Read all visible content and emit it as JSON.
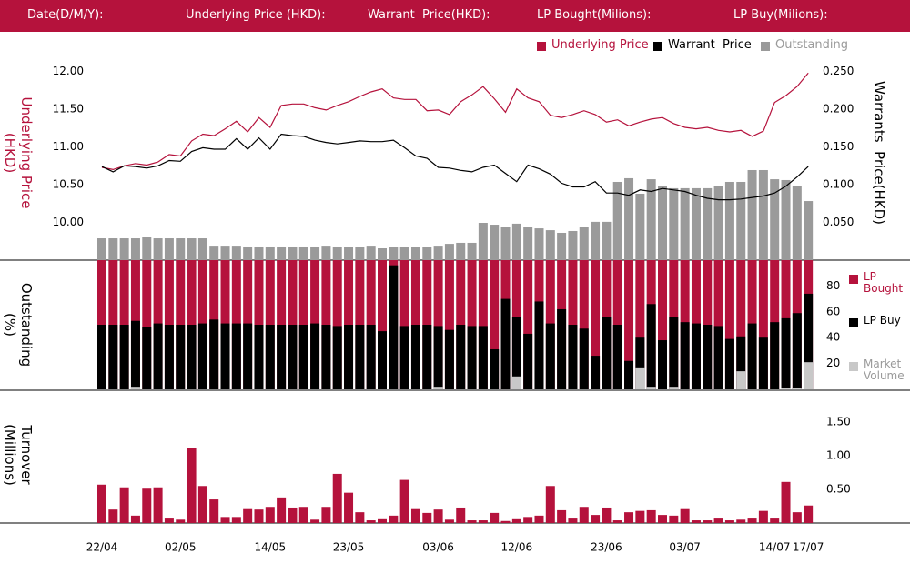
{
  "header": {
    "labels": [
      "Date(D/M/Y):",
      "Underlying Price (HKD):",
      "Warrant  Price(HKD):",
      "LP Bought(Milions):",
      "LP Buy(Milions):"
    ]
  },
  "chart_data": [
    {
      "type": "line",
      "ylabel": "Underlying Price (HKD)",
      "y2label": "Warrants  Price(HKD)",
      "ylim": [
        9.5,
        12.2
      ],
      "yticks": [
        {
          "value": 12,
          "label": "12.00"
        },
        {
          "value": 11.5,
          "label": "11.50"
        },
        {
          "value": 11,
          "label": "11.00"
        },
        {
          "value": 10.5,
          "label": "10.50"
        },
        {
          "value": 10,
          "label": "10.00"
        }
      ],
      "y2lim": [
        0,
        0.27
      ],
      "y2ticks": [
        {
          "value": 0.25,
          "label": "0.250"
        },
        {
          "value": 0.2,
          "label": "0.200"
        },
        {
          "value": 0.15,
          "label": "0.150"
        },
        {
          "value": 0.1,
          "label": "0.100"
        },
        {
          "value": 0.05,
          "label": "0.050"
        }
      ],
      "y3lim": [
        0,
        100
      ],
      "series": [
        {
          "name": "Underlying Price",
          "color": "#b5123c",
          "axis": "y",
          "values": [
            10.73,
            10.7,
            10.75,
            10.78,
            10.76,
            10.8,
            10.9,
            10.88,
            11.08,
            11.17,
            11.15,
            11.24,
            11.34,
            11.2,
            11.39,
            11.26,
            11.55,
            11.57,
            11.57,
            11.52,
            11.49,
            11.55,
            11.6,
            11.67,
            11.73,
            11.77,
            11.65,
            11.63,
            11.63,
            11.48,
            11.49,
            11.43,
            11.6,
            11.69,
            11.8,
            11.64,
            11.46,
            11.77,
            11.65,
            11.6,
            11.42,
            11.39,
            11.43,
            11.48,
            11.43,
            11.33,
            11.36,
            11.28,
            11.33,
            11.37,
            11.39,
            11.31,
            11.26,
            11.24,
            11.26,
            11.22,
            11.2,
            11.22,
            11.14,
            11.21,
            11.59,
            11.68,
            11.8,
            11.98
          ]
        },
        {
          "name": "Warrant  Price",
          "color": "#000000",
          "axis": "y2",
          "values": [
            0.124,
            0.117,
            0.125,
            0.124,
            0.122,
            0.125,
            0.132,
            0.131,
            0.144,
            0.149,
            0.147,
            0.147,
            0.161,
            0.147,
            0.162,
            0.147,
            0.167,
            0.165,
            0.164,
            0.159,
            0.156,
            0.154,
            0.156,
            0.158,
            0.157,
            0.157,
            0.159,
            0.149,
            0.138,
            0.135,
            0.123,
            0.122,
            0.119,
            0.117,
            0.123,
            0.126,
            0.115,
            0.104,
            0.126,
            0.121,
            0.114,
            0.102,
            0.097,
            0.097,
            0.104,
            0.089,
            0.089,
            0.086,
            0.093,
            0.091,
            0.095,
            0.093,
            0.091,
            0.086,
            0.082,
            0.08,
            0.08,
            0.081,
            0.083,
            0.085,
            0.089,
            0.098,
            0.11,
            0.124
          ]
        },
        {
          "name": "Outstanding",
          "color": "#9a9a9a",
          "axis": "y3",
          "type": "bar",
          "values": [
            10.7,
            10.7,
            10.7,
            10.7,
            11.6,
            10.7,
            10.7,
            10.7,
            10.7,
            10.7,
            7.1,
            7.1,
            7.1,
            6.7,
            6.7,
            6.7,
            6.7,
            6.7,
            6.7,
            6.7,
            7.1,
            6.7,
            6.3,
            6.3,
            7.1,
            5.8,
            6.3,
            6.3,
            6.3,
            6.3,
            7.1,
            8.0,
            8.5,
            8.5,
            18.3,
            17.4,
            16.5,
            17.9,
            16.5,
            15.6,
            14.7,
            13.4,
            14.3,
            16.5,
            18.8,
            18.8,
            38.4,
            40.2,
            32.6,
            39.7,
            36.6,
            35.3,
            35.3,
            35.3,
            35.3,
            36.6,
            38.4,
            38.4,
            44.2,
            44.2,
            39.7,
            39.3,
            36.6,
            29.0
          ]
        }
      ]
    },
    {
      "type": "bar",
      "ylabel": "Outstanding (%)",
      "ylim": [
        0,
        100
      ],
      "yticks": [
        80,
        60,
        40,
        20
      ],
      "series": [
        {
          "name": "LP Bought",
          "color": "#b5123c",
          "values": [
            100,
            100,
            100,
            100,
            100,
            100,
            100,
            100,
            100,
            100,
            100,
            100,
            100,
            100,
            100,
            100,
            100,
            100,
            100,
            100,
            100,
            100,
            100,
            100,
            100,
            100,
            100,
            100,
            100,
            100,
            100,
            100,
            100,
            100,
            100,
            100,
            100,
            100,
            100,
            100,
            100,
            100,
            100,
            100,
            100,
            100,
            100,
            100,
            100,
            100,
            100,
            100,
            100,
            100,
            100,
            100,
            100,
            100,
            100,
            100,
            100,
            100,
            100,
            100
          ]
        },
        {
          "name": "LP Buy",
          "color": "#000000",
          "values": [
            50,
            50,
            50,
            53,
            48,
            51,
            50,
            50,
            50,
            51,
            54,
            51,
            51,
            51,
            50,
            50,
            50,
            50,
            50,
            51,
            50,
            49,
            50,
            50,
            50,
            45,
            96,
            49,
            50,
            50,
            49,
            46,
            50,
            49,
            49,
            31,
            70,
            56,
            43,
            68,
            51,
            62,
            50,
            47,
            26,
            56,
            50,
            22,
            40,
            66,
            38,
            56,
            52,
            51,
            50,
            49,
            39,
            41,
            51,
            40,
            52,
            55,
            59,
            74
          ]
        },
        {
          "name": "Market Volume",
          "color": "#c8c8c8",
          "values": [
            0,
            0,
            0,
            2,
            0,
            0,
            0,
            0,
            0,
            0,
            0,
            0,
            0,
            0,
            0,
            0,
            0,
            0,
            0,
            0,
            0,
            0,
            0,
            0,
            0,
            0,
            0,
            0,
            0,
            0,
            2,
            0,
            0,
            0,
            0,
            0,
            0,
            10,
            0,
            0,
            0,
            0,
            0,
            0,
            0,
            0,
            0,
            0,
            17,
            2,
            0,
            2,
            0,
            0,
            0,
            0,
            0,
            14,
            0,
            0,
            0,
            1,
            1,
            21
          ]
        }
      ]
    },
    {
      "type": "bar",
      "ylabel": "Turnover (Millions)",
      "categories": [
        "22/04",
        null,
        null,
        null,
        null,
        null,
        null,
        "02/05",
        null,
        null,
        null,
        null,
        null,
        null,
        null,
        "14/05",
        null,
        null,
        null,
        null,
        null,
        null,
        "23/05",
        null,
        null,
        null,
        null,
        null,
        null,
        null,
        "03/06",
        null,
        null,
        null,
        null,
        null,
        null,
        "12/06",
        null,
        null,
        null,
        null,
        null,
        null,
        null,
        "23/06",
        null,
        null,
        null,
        null,
        null,
        null,
        "03/07",
        null,
        null,
        null,
        null,
        null,
        null,
        null,
        "14/07",
        null,
        null,
        "17/07"
      ],
      "ylim": [
        0,
        1.62
      ],
      "yticks": [
        {
          "value": 1.5,
          "label": "1.50"
        },
        {
          "value": 1,
          "label": "1.00"
        },
        {
          "value": 0.5,
          "label": "0.50"
        }
      ],
      "series": [
        {
          "color": "#b5123c",
          "values": [
            0.57,
            0.2,
            0.53,
            0.11,
            0.51,
            0.53,
            0.08,
            0.05,
            1.12,
            0.55,
            0.35,
            0.09,
            0.09,
            0.22,
            0.2,
            0.24,
            0.38,
            0.23,
            0.24,
            0.05,
            0.24,
            0.73,
            0.45,
            0.16,
            0.04,
            0.07,
            0.11,
            0.64,
            0.22,
            0.15,
            0.2,
            0.05,
            0.23,
            0.04,
            0.04,
            0.15,
            0.03,
            0.07,
            0.09,
            0.11,
            0.55,
            0.19,
            0.08,
            0.24,
            0.12,
            0.23,
            0.04,
            0.16,
            0.18,
            0.19,
            0.12,
            0.11,
            0.22,
            0.04,
            0.04,
            0.08,
            0.04,
            0.05,
            0.08,
            0.18,
            0.08,
            0.61,
            0.16,
            0.26
          ]
        }
      ]
    }
  ]
}
